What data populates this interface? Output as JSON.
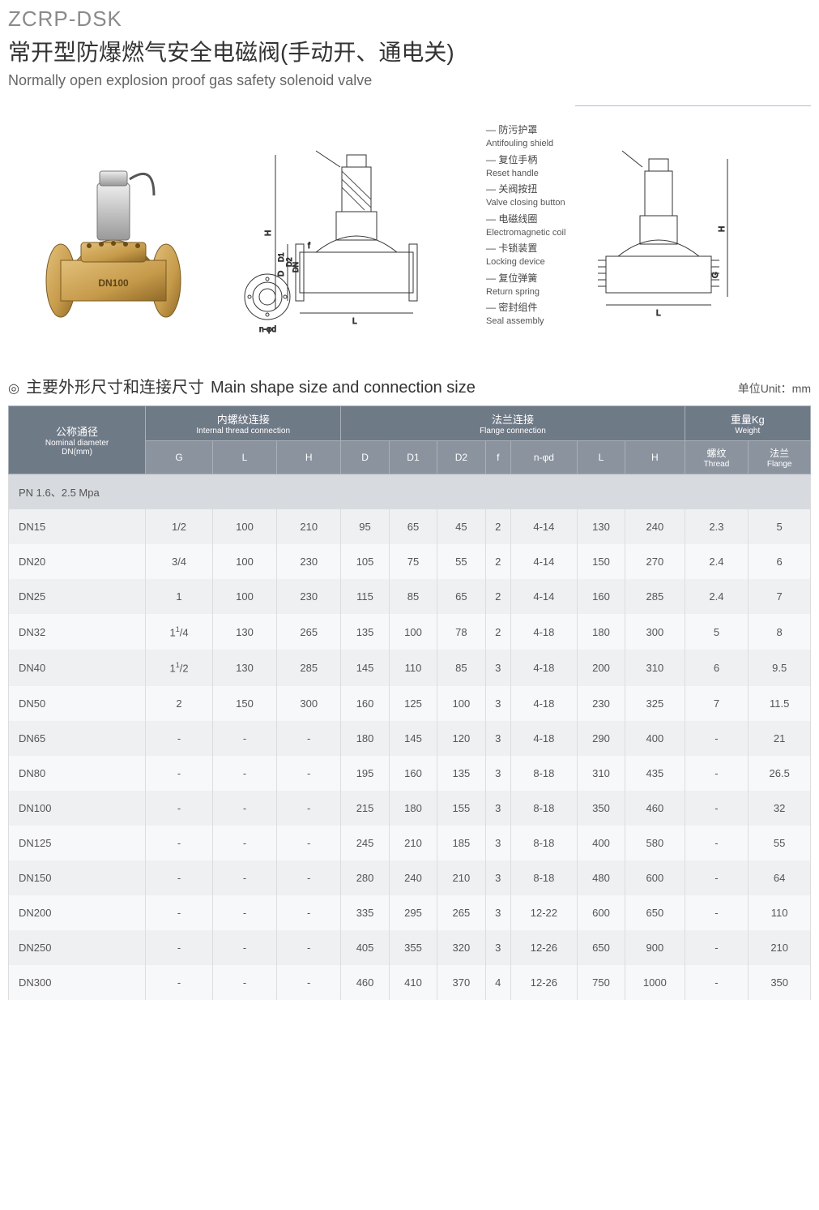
{
  "model_code": "ZCRP-DSK",
  "title_cn": "常开型防爆燃气安全电磁阀(手动开、通电关)",
  "title_en": "Normally open explosion proof gas safety solenoid valve",
  "callouts": [
    {
      "cn": "防污护罩",
      "en": "Antifouling shield"
    },
    {
      "cn": "复位手柄",
      "en": "Reset handle"
    },
    {
      "cn": "关阀按扭",
      "en": "Valve closing button"
    },
    {
      "cn": "电磁线圈",
      "en": "Electromagnetic coil"
    },
    {
      "cn": "卡锁装置",
      "en": "Locking device"
    },
    {
      "cn": "复位弹簧",
      "en": "Return spring"
    },
    {
      "cn": "密封组件",
      "en": "Seal assembly"
    }
  ],
  "dim_labels": {
    "H": "H",
    "D": "D",
    "D1": "D1",
    "D2": "D2",
    "DN": "DN",
    "L": "L",
    "f": "f",
    "n_phi_d": "n-φd",
    "G": "G"
  },
  "section": {
    "ring": "◎",
    "heading_cn": "主要外形尺寸和连接尺寸",
    "heading_en": "Main shape size and connection size",
    "unit": "单位Unit：mm"
  },
  "table": {
    "header": {
      "nominal": {
        "cn": "公称通径",
        "en": "Nominal diameter",
        "unit": "DN(mm)"
      },
      "internal": {
        "cn": "内螺纹连接",
        "en": "Internal thread connection"
      },
      "flange": {
        "cn": "法兰连接",
        "en": "Flange connection"
      },
      "weight": {
        "cn": "重量Kg",
        "en": "Weight"
      },
      "cols_internal": [
        "G",
        "L",
        "H"
      ],
      "cols_flange": [
        "D",
        "D1",
        "D2",
        "f",
        "n-φd",
        "L",
        "H"
      ],
      "cols_weight": [
        {
          "cn": "螺纹",
          "en": "Thread"
        },
        {
          "cn": "法兰",
          "en": "Flange"
        }
      ]
    },
    "pn_row": "PN 1.6、2.5 Mpa",
    "rows": [
      {
        "dn": "DN15",
        "g": "1/2",
        "l1": "100",
        "h1": "210",
        "d": "95",
        "d1": "65",
        "d2": "45",
        "f": "2",
        "nphid": "4-14",
        "l2": "130",
        "h2": "240",
        "wt": "2.3",
        "wf": "5"
      },
      {
        "dn": "DN20",
        "g": "3/4",
        "l1": "100",
        "h1": "230",
        "d": "105",
        "d1": "75",
        "d2": "55",
        "f": "2",
        "nphid": "4-14",
        "l2": "150",
        "h2": "270",
        "wt": "2.4",
        "wf": "6"
      },
      {
        "dn": "DN25",
        "g": "1",
        "l1": "100",
        "h1": "230",
        "d": "115",
        "d1": "85",
        "d2": "65",
        "f": "2",
        "nphid": "4-14",
        "l2": "160",
        "h2": "285",
        "wt": "2.4",
        "wf": "7"
      },
      {
        "dn": "DN32",
        "g": "1¹/4",
        "l1": "130",
        "h1": "265",
        "d": "135",
        "d1": "100",
        "d2": "78",
        "f": "2",
        "nphid": "4-18",
        "l2": "180",
        "h2": "300",
        "wt": "5",
        "wf": "8"
      },
      {
        "dn": "DN40",
        "g": "1¹/2",
        "l1": "130",
        "h1": "285",
        "d": "145",
        "d1": "110",
        "d2": "85",
        "f": "3",
        "nphid": "4-18",
        "l2": "200",
        "h2": "310",
        "wt": "6",
        "wf": "9.5"
      },
      {
        "dn": "DN50",
        "g": "2",
        "l1": "150",
        "h1": "300",
        "d": "160",
        "d1": "125",
        "d2": "100",
        "f": "3",
        "nphid": "4-18",
        "l2": "230",
        "h2": "325",
        "wt": "7",
        "wf": "11.5"
      },
      {
        "dn": "DN65",
        "g": "-",
        "l1": "-",
        "h1": "-",
        "d": "180",
        "d1": "145",
        "d2": "120",
        "f": "3",
        "nphid": "4-18",
        "l2": "290",
        "h2": "400",
        "wt": "-",
        "wf": "21"
      },
      {
        "dn": "DN80",
        "g": "-",
        "l1": "-",
        "h1": "-",
        "d": "195",
        "d1": "160",
        "d2": "135",
        "f": "3",
        "nphid": "8-18",
        "l2": "310",
        "h2": "435",
        "wt": "-",
        "wf": "26.5"
      },
      {
        "dn": "DN100",
        "g": "-",
        "l1": "-",
        "h1": "-",
        "d": "215",
        "d1": "180",
        "d2": "155",
        "f": "3",
        "nphid": "8-18",
        "l2": "350",
        "h2": "460",
        "wt": "-",
        "wf": "32"
      },
      {
        "dn": "DN125",
        "g": "-",
        "l1": "-",
        "h1": "-",
        "d": "245",
        "d1": "210",
        "d2": "185",
        "f": "3",
        "nphid": "8-18",
        "l2": "400",
        "h2": "580",
        "wt": "-",
        "wf": "55"
      },
      {
        "dn": "DN150",
        "g": "-",
        "l1": "-",
        "h1": "-",
        "d": "280",
        "d1": "240",
        "d2": "210",
        "f": "3",
        "nphid": "8-18",
        "l2": "480",
        "h2": "600",
        "wt": "-",
        "wf": "64"
      },
      {
        "dn": "DN200",
        "g": "-",
        "l1": "-",
        "h1": "-",
        "d": "335",
        "d1": "295",
        "d2": "265",
        "f": "3",
        "nphid": "12-22",
        "l2": "600",
        "h2": "650",
        "wt": "-",
        "wf": "110"
      },
      {
        "dn": "DN250",
        "g": "-",
        "l1": "-",
        "h1": "-",
        "d": "405",
        "d1": "355",
        "d2": "320",
        "f": "3",
        "nphid": "12-26",
        "l2": "650",
        "h2": "900",
        "wt": "-",
        "wf": "210"
      },
      {
        "dn": "DN300",
        "g": "-",
        "l1": "-",
        "h1": "-",
        "d": "460",
        "d1": "410",
        "d2": "370",
        "f": "4",
        "nphid": "12-26",
        "l2": "750",
        "h2": "1000",
        "wt": "-",
        "wf": "350"
      }
    ]
  },
  "colors": {
    "header_bg": "#6f7a87",
    "header_sub_bg": "#8b939e",
    "row_even": "#eef0f2",
    "row_odd": "#f7f8f9",
    "pn_bg": "#d7dade",
    "brass": "#c69a4a",
    "brass_dark": "#a37a2e",
    "steel": "#c9c9c9"
  }
}
